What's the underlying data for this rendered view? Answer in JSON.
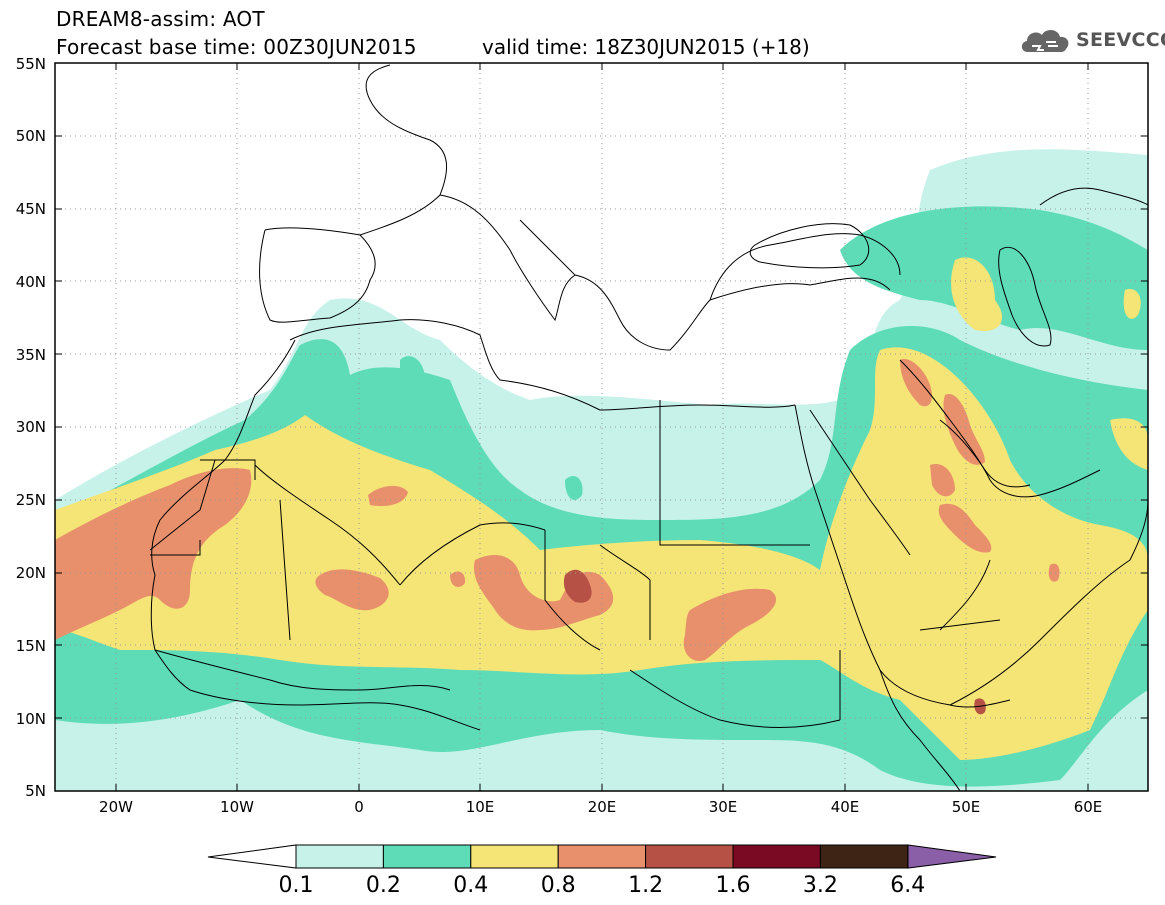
{
  "header": {
    "title": "DREAM8-assim: AOT",
    "base_time": "Forecast base time: 00Z30JUN2015",
    "valid_time": "valid time: 18Z30JUN2015 (+18)",
    "logo_text": "SEEVCCC",
    "logo_icon": "cloud-icon"
  },
  "map": {
    "lon_range": [
      -25,
      65
    ],
    "lat_range": [
      5,
      55
    ],
    "lat_ticks": [
      "55N",
      "50N",
      "45N",
      "40N",
      "35N",
      "30N",
      "25N",
      "20N",
      "15N",
      "10N",
      "5N"
    ],
    "lon_ticks": [
      "20W",
      "10W",
      "0",
      "10E",
      "20E",
      "30E",
      "40E",
      "50E",
      "60E"
    ],
    "lat_values": [
      55,
      50,
      45,
      40,
      35,
      30,
      25,
      20,
      15,
      10,
      5
    ],
    "lon_values": [
      -20,
      -10,
      0,
      10,
      20,
      30,
      40,
      50,
      60
    ],
    "gridlines": true
  },
  "colorbar": {
    "labels": [
      "0.1",
      "0.2",
      "0.4",
      "0.8",
      "1.2",
      "1.6",
      "3.2",
      "6.4"
    ],
    "colors": [
      "#c6f2ea",
      "#5edcb8",
      "#f5e476",
      "#e8906c",
      "#b55245",
      "#7a0a24",
      "#3d2414"
    ],
    "under_color": "#ffffff",
    "over_color": "#8a5fa8"
  }
}
